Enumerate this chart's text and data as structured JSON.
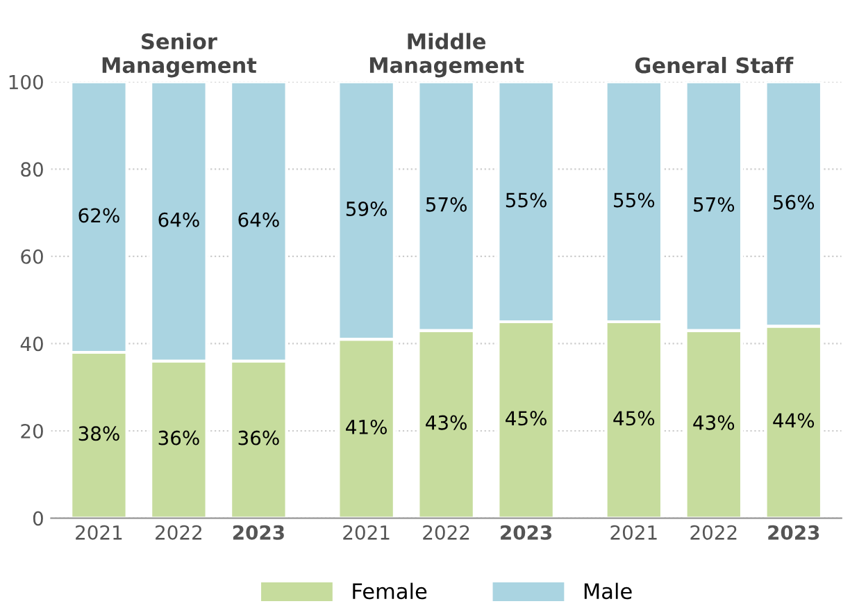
{
  "chart_data": {
    "type": "bar",
    "stacked": true,
    "categories": [
      "2021",
      "2022",
      "2023",
      "2021",
      "2022",
      "2023",
      "2021",
      "2022",
      "2023"
    ],
    "series": [
      {
        "name": "Female",
        "color": "#c6dc9d",
        "values": [
          38,
          36,
          36,
          41,
          43,
          45,
          45,
          43,
          44
        ],
        "value_labels": [
          "38%",
          "36%",
          "36%",
          "41%",
          "43%",
          "45%",
          "45%",
          "43%",
          "44%"
        ]
      },
      {
        "name": "Male",
        "color": "#aad4e1",
        "values": [
          62,
          64,
          64,
          59,
          57,
          55,
          55,
          57,
          56
        ],
        "value_labels": [
          "62%",
          "64%",
          "64%",
          "59%",
          "57%",
          "55%",
          "55%",
          "57%",
          "56%"
        ]
      }
    ],
    "annotations": [
      "Senior\nManagement",
      "Middle\nManagement",
      "General Staff"
    ],
    "ylim": [
      0,
      100
    ],
    "yticks": [
      0,
      20,
      40,
      60,
      80,
      100
    ],
    "grid": "y",
    "legend": "bottom"
  }
}
